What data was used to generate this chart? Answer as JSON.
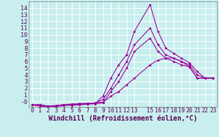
{
  "xlabel": "Windchill (Refroidissement éolien,°C)",
  "bg_color": "#c8eeee",
  "line_color": "#990099",
  "grid_color": "#aadddd",
  "xlim": [
    -0.5,
    23.5
  ],
  "ylim": [
    -0.8,
    15.0
  ],
  "xticks": [
    0,
    1,
    2,
    3,
    4,
    5,
    6,
    7,
    8,
    9,
    10,
    11,
    12,
    13,
    15,
    16,
    17,
    18,
    19,
    20,
    21,
    22,
    23
  ],
  "yticks": [
    0,
    1,
    2,
    3,
    4,
    5,
    6,
    7,
    8,
    9,
    10,
    11,
    12,
    13,
    14
  ],
  "ytick_labels": [
    "-0",
    "1",
    "2",
    "3",
    "4",
    "5",
    "6",
    "7",
    "8",
    "9",
    "10",
    "11",
    "12",
    "13",
    "14"
  ],
  "line1_x": [
    0,
    1,
    2,
    3,
    4,
    5,
    6,
    7,
    8,
    9,
    10,
    11,
    12,
    13,
    15,
    16,
    17,
    18,
    19,
    20,
    21,
    22,
    23
  ],
  "line1_y": [
    -0.5,
    -0.5,
    -0.7,
    -0.6,
    -0.5,
    -0.4,
    -0.3,
    -0.3,
    -0.2,
    -0.1,
    0.8,
    1.5,
    2.5,
    3.5,
    5.5,
    6.2,
    6.5,
    6.5,
    6.0,
    5.2,
    3.5,
    3.5,
    3.5
  ],
  "line2_x": [
    0,
    1,
    2,
    3,
    4,
    5,
    6,
    7,
    8,
    9,
    10,
    11,
    12,
    13,
    15,
    16,
    17,
    18,
    19,
    20,
    21,
    22,
    23
  ],
  "line2_y": [
    -0.5,
    -0.5,
    -0.8,
    -0.7,
    -0.5,
    -0.45,
    -0.4,
    -0.35,
    -0.3,
    0.8,
    3.5,
    5.5,
    7.0,
    10.5,
    14.5,
    10.5,
    8.0,
    7.2,
    6.5,
    5.8,
    4.5,
    3.5,
    3.5
  ],
  "line3_x": [
    0,
    1,
    2,
    3,
    4,
    5,
    6,
    7,
    8,
    9,
    10,
    11,
    12,
    13,
    15,
    16,
    17,
    18,
    19,
    20,
    21,
    22,
    23
  ],
  "line3_y": [
    -0.5,
    -0.5,
    -0.7,
    -0.65,
    -0.45,
    -0.4,
    -0.35,
    -0.3,
    -0.25,
    0.3,
    2.0,
    4.0,
    6.0,
    8.5,
    11.0,
    8.5,
    7.0,
    6.5,
    6.0,
    5.5,
    4.0,
    3.5,
    3.5
  ],
  "line4_x": [
    0,
    1,
    2,
    3,
    4,
    5,
    6,
    7,
    8,
    9,
    10,
    11,
    12,
    13,
    15,
    16,
    17,
    18,
    19,
    20,
    21,
    22,
    23
  ],
  "line4_y": [
    -0.5,
    -0.7,
    -0.8,
    -0.75,
    -0.6,
    -0.55,
    -0.5,
    -0.4,
    -0.35,
    -0.2,
    1.5,
    3.0,
    5.0,
    7.5,
    9.5,
    7.5,
    6.5,
    6.0,
    5.5,
    5.2,
    3.5,
    3.5,
    3.5
  ],
  "font_name": "monospace",
  "xlabel_fontsize": 7.0,
  "tick_fontsize": 6.0,
  "lw": 0.8,
  "msize": 2.0
}
